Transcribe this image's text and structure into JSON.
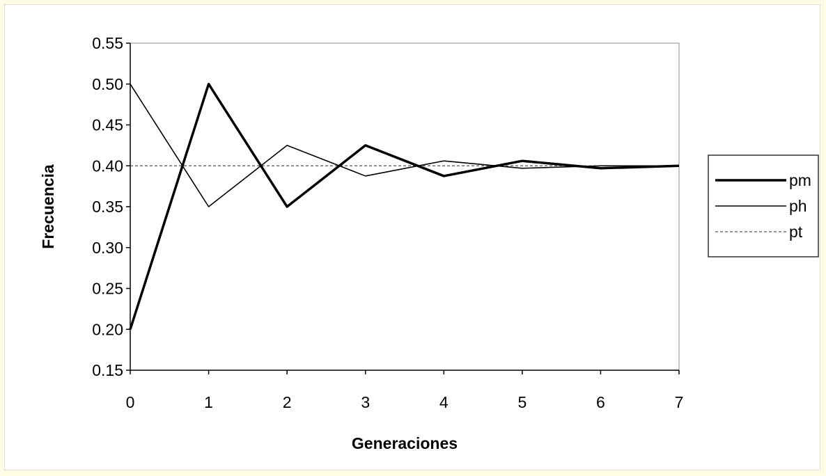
{
  "chart_data": {
    "type": "line",
    "title": "",
    "xlabel": "Generaciones",
    "ylabel": "Frecuencia",
    "xlim": [
      0,
      7
    ],
    "ylim": [
      0.15,
      0.55
    ],
    "x_ticks": [
      "0",
      "1",
      "2",
      "3",
      "4",
      "5",
      "6",
      "7"
    ],
    "y_ticks": [
      "0.15",
      "0.20",
      "0.25",
      "0.30",
      "0.35",
      "0.40",
      "0.45",
      "0.50",
      "0.55"
    ],
    "x": [
      0,
      1,
      2,
      3,
      4,
      5,
      6,
      7
    ],
    "series": [
      {
        "name": "pm",
        "values": [
          0.2,
          0.5,
          0.35,
          0.425,
          0.3875,
          0.406,
          0.397,
          0.4
        ],
        "style": "thick"
      },
      {
        "name": "ph",
        "values": [
          0.5,
          0.35,
          0.425,
          0.3875,
          0.406,
          0.397,
          0.4,
          0.4
        ],
        "style": "thin"
      },
      {
        "name": "pt",
        "values": [
          0.4,
          0.4,
          0.4,
          0.4,
          0.4,
          0.4,
          0.4,
          0.4
        ],
        "style": "dashed"
      }
    ],
    "grid": false,
    "legend": "right",
    "colors": {
      "line": "#000000",
      "dashed": "#555555",
      "background": "#ffffff",
      "border": "#fffde6"
    }
  }
}
